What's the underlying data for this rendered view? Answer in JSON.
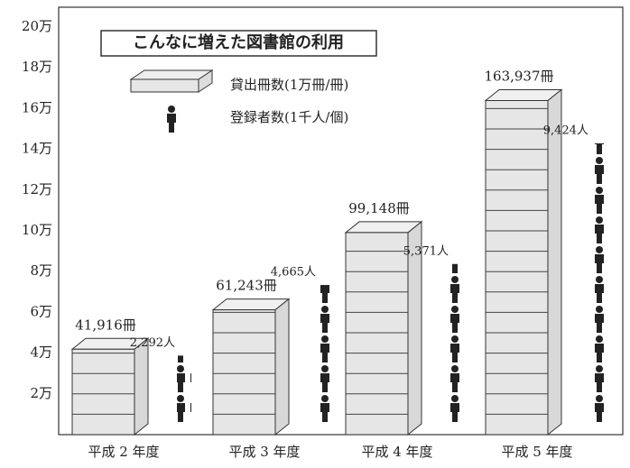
{
  "chart_data": {
    "type": "bar",
    "title": "こんなに増えた図書館の利用",
    "categories": [
      "平成 2 年度",
      "平成 3 年度",
      "平成 4 年度",
      "平成 5 年度"
    ],
    "series": [
      {
        "name": "貸出冊数(1万冊/冊)",
        "color": "#e6e6e6",
        "values": [
          41916,
          61243,
          99148,
          163937
        ],
        "value_labels": [
          "41,916冊",
          "61,243冊",
          "99,148冊",
          "163,937冊"
        ]
      },
      {
        "name": "登録者数(1千人/個)",
        "color": "#222222",
        "values": [
          2292,
          4665,
          5371,
          9424
        ],
        "value_labels": [
          "2,292人",
          "4,665人",
          "5,371人",
          "9,424人"
        ]
      }
    ],
    "ylim": [
      0,
      200000
    ],
    "yticks": [
      {
        "value": 20000,
        "label": "2万"
      },
      {
        "value": 40000,
        "label": "4万"
      },
      {
        "value": 60000,
        "label": "6万"
      },
      {
        "value": 80000,
        "label": "8万"
      },
      {
        "value": 100000,
        "label": "10万"
      },
      {
        "value": 120000,
        "label": "12万"
      },
      {
        "value": 140000,
        "label": "14万"
      },
      {
        "value": 160000,
        "label": "16万"
      },
      {
        "value": 180000,
        "label": "18万"
      },
      {
        "value": 200000,
        "label": "20万"
      }
    ]
  }
}
